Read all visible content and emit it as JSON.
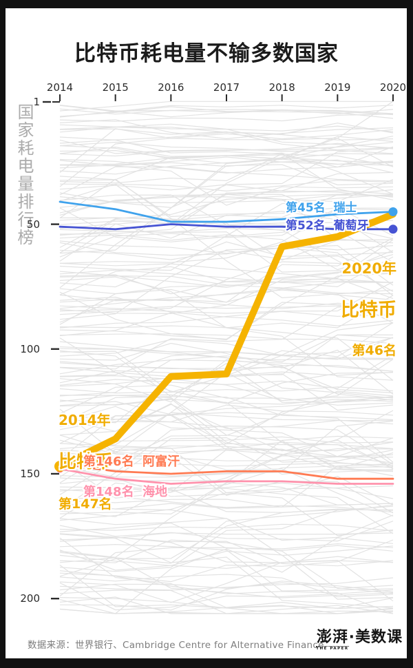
{
  "title": "比特币耗电量不输多数国家",
  "axes": {
    "y_label": "国家耗电量排行榜",
    "x_ticks": [
      "2014",
      "2015",
      "2016",
      "2017",
      "2018",
      "2019",
      "2020"
    ],
    "y_ticks": [
      "1",
      "50",
      "100",
      "150",
      "200"
    ]
  },
  "annotations": {
    "switzerland": "第45名  瑞士",
    "portugal": "第52名  葡萄牙",
    "bitcoin_2020": {
      "line1": "2020年",
      "line2": "比特币",
      "line3": "第46名"
    },
    "bitcoin_2014": {
      "line1": "2014年",
      "line2": "比特币",
      "line3": "第147名"
    },
    "afghanistan": "第146名  阿富汗",
    "haiti": "第148名  海地"
  },
  "footer": {
    "source": "数据来源：世界银行、Cambridge Centre for Alternative Finance",
    "logo": "澎湃",
    "logo_sub": "THE PAPER",
    "logo_right": "·美数课"
  },
  "colors": {
    "bitcoin": "#F5B301",
    "bitcoin_text": "#F0AC00",
    "switzerland": "#3FA2EC",
    "portugal": "#4653D3",
    "afghanistan": "#FF7A52",
    "haiti": "#FF92AC",
    "haiti_dot": "#FF7787",
    "background_lines": "#E2E2E2",
    "axis_text": "#2B2B2B",
    "y_axis_title": "#ABABAB"
  },
  "chart_data": {
    "type": "line",
    "subtype": "bump-ranking",
    "title": "比特币耗电量不输多数国家",
    "ylabel": "国家耗电量排行榜",
    "x": [
      2014,
      2015,
      2016,
      2017,
      2018,
      2019,
      2020
    ],
    "y_ticks": [
      1,
      50,
      100,
      150,
      200
    ],
    "y_inverted": true,
    "ylim": [
      1,
      205
    ],
    "grid": false,
    "background_series_count": 190,
    "series": [
      {
        "name": "阿富汗",
        "label": "第146名  阿富汗",
        "color": "#FF7A52",
        "values": [
          146,
          149,
          150,
          149,
          149,
          152,
          152
        ],
        "dot_start": false,
        "dot_end": false,
        "emphasis": false
      },
      {
        "name": "海地",
        "label": "第148名  海地",
        "color": "#FF92AC",
        "dot_color": "#FF7787",
        "values": [
          148,
          152,
          154,
          153,
          153,
          154,
          154
        ],
        "dot_start": true,
        "dot_end": false,
        "emphasis": false
      },
      {
        "name": "比特币",
        "label_2014": "2014年 比特币 第147名",
        "label_2020": "2020年 比特币 第46名",
        "color": "#F5B301",
        "values": [
          147,
          136,
          111,
          110,
          59,
          55,
          46
        ],
        "dot_start": true,
        "dot_end": false,
        "emphasis": true
      },
      {
        "name": "瑞士",
        "label": "第45名  瑞士",
        "color": "#3FA2EC",
        "values": [
          41,
          44,
          49,
          49,
          48,
          46,
          45
        ],
        "dot_start": false,
        "dot_end": true,
        "emphasis": false
      },
      {
        "name": "葡萄牙",
        "label": "第52名  葡萄牙",
        "color": "#4653D3",
        "values": [
          51,
          52,
          50,
          51,
          51,
          52,
          52
        ],
        "dot_start": false,
        "dot_end": true,
        "emphasis": false
      }
    ]
  }
}
